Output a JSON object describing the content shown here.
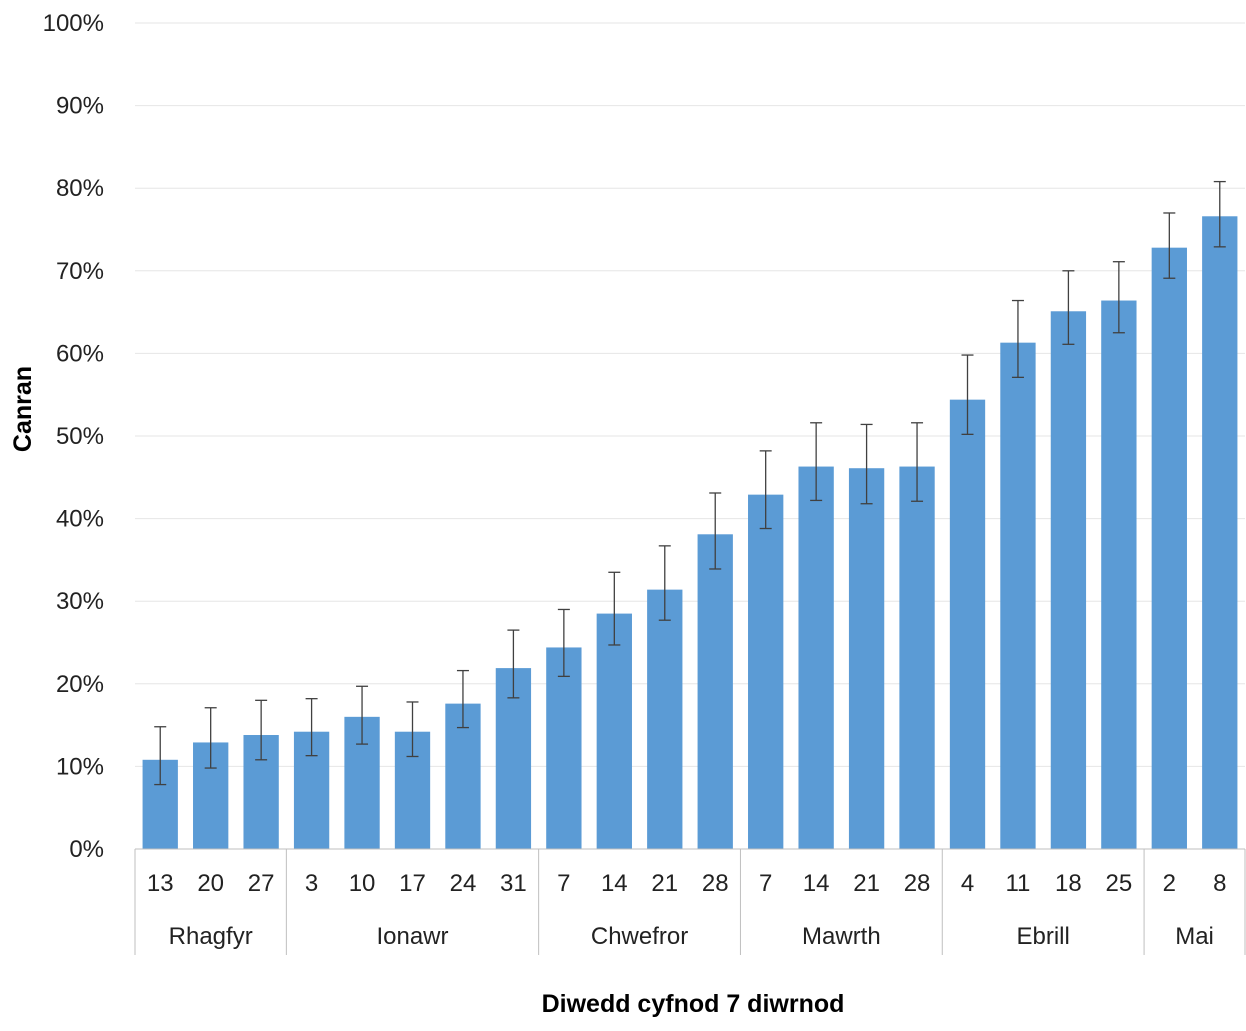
{
  "chart_data": {
    "type": "bar",
    "xlabel": "Diwedd cyfnod 7 diwrnod",
    "ylabel": "Canran",
    "ylim": [
      0,
      100
    ],
    "yticks": [
      "0%",
      "10%",
      "20%",
      "30%",
      "40%",
      "50%",
      "60%",
      "70%",
      "80%",
      "90%",
      "100%"
    ],
    "grid": true,
    "bar_color": "#5b9bd5",
    "error_bar_color": "#404040",
    "categories": [
      "13",
      "20",
      "27",
      "3",
      "10",
      "17",
      "24",
      "31",
      "7",
      "14",
      "21",
      "28",
      "7",
      "14",
      "21",
      "28",
      "4",
      "11",
      "18",
      "25",
      "2",
      "8"
    ],
    "groups": [
      {
        "label": "Rhagfyr",
        "count": 3
      },
      {
        "label": "Ionawr",
        "count": 5
      },
      {
        "label": "Chwefror",
        "count": 4
      },
      {
        "label": "Mawrth",
        "count": 4
      },
      {
        "label": "Ebrill",
        "count": 4
      },
      {
        "label": "Mai",
        "count": 2
      }
    ],
    "values": [
      10.8,
      12.9,
      13.8,
      14.2,
      16.0,
      14.2,
      17.6,
      21.9,
      24.4,
      28.5,
      31.4,
      38.1,
      42.9,
      46.3,
      46.1,
      46.3,
      54.4,
      61.3,
      65.1,
      66.4,
      72.8,
      76.6
    ],
    "error_low": [
      7.8,
      9.8,
      10.8,
      11.3,
      12.7,
      11.2,
      14.7,
      18.3,
      20.9,
      24.7,
      27.7,
      33.9,
      38.8,
      42.2,
      41.8,
      42.1,
      50.2,
      57.1,
      61.1,
      62.5,
      69.1,
      72.9
    ],
    "error_high": [
      14.8,
      17.1,
      18.0,
      18.2,
      19.7,
      17.8,
      21.6,
      26.5,
      29.0,
      33.5,
      36.7,
      43.1,
      48.2,
      51.6,
      51.4,
      51.6,
      59.8,
      66.4,
      70.0,
      71.1,
      77.0,
      80.8
    ]
  }
}
